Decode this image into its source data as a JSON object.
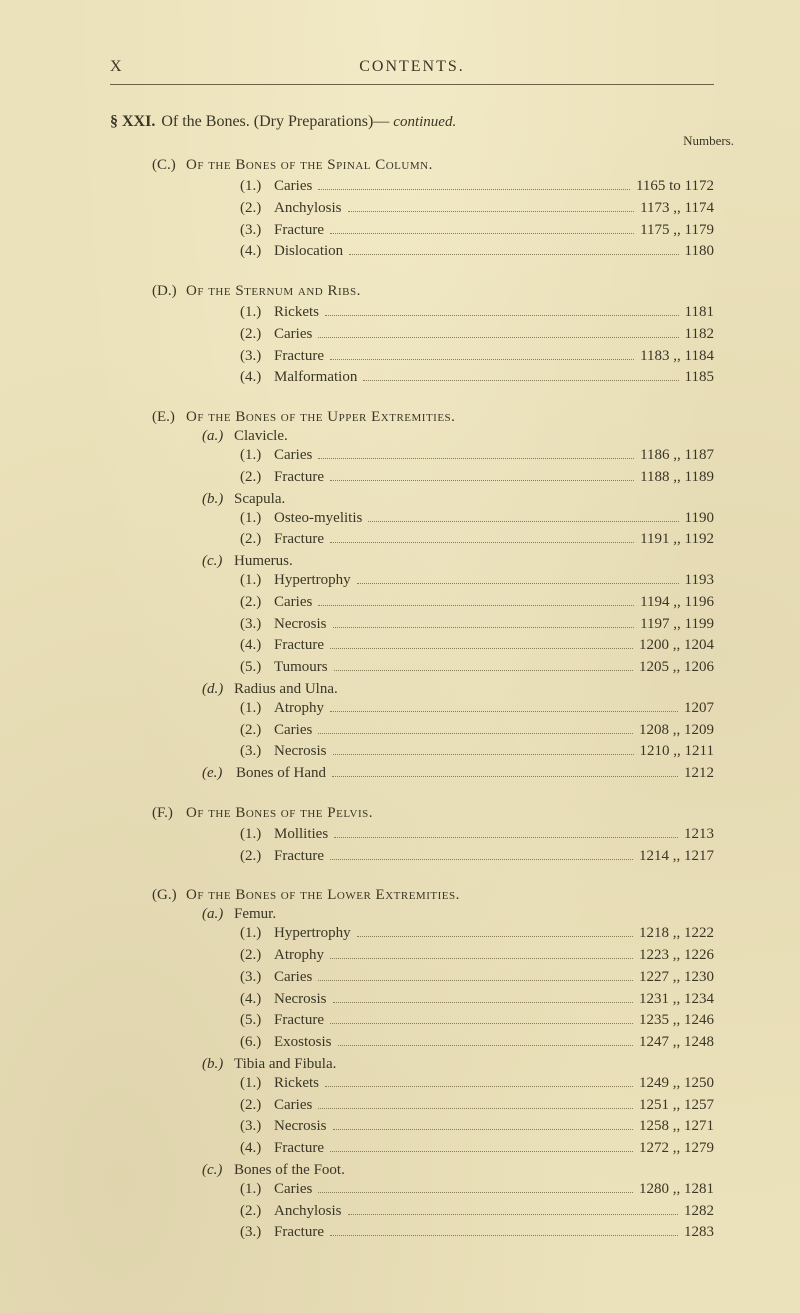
{
  "header": {
    "page_num": "X",
    "title": "CONTENTS."
  },
  "section": {
    "label": "§ XXI.",
    "title": "Of the Bones.  (Dry Preparations)—",
    "continued": "continued."
  },
  "numbers_label": "Numbers.",
  "groups": [
    {
      "key": "(C.)",
      "title": "Of the Bones of the Spinal Column.",
      "subsections": [
        {
          "entries": [
            {
              "n": "(1.)",
              "label": "Caries",
              "from": "1165",
              "sep": "to",
              "to": "1172"
            },
            {
              "n": "(2.)",
              "label": "Anchylosis",
              "from": "1173",
              "sep": ",,",
              "to": "1174"
            },
            {
              "n": "(3.)",
              "label": "Fracture",
              "from": "1175",
              "sep": ",,",
              "to": "1179"
            },
            {
              "n": "(4.)",
              "label": "Dislocation",
              "from": "1180"
            }
          ]
        }
      ]
    },
    {
      "key": "(D.)",
      "title": "Of the Sternum and Ribs.",
      "subsections": [
        {
          "entries": [
            {
              "n": "(1.)",
              "label": "Rickets",
              "from": "1181"
            },
            {
              "n": "(2.)",
              "label": "Caries",
              "from": "1182"
            },
            {
              "n": "(3.)",
              "label": "Fracture",
              "from": "1183",
              "sep": ",,",
              "to": "1184"
            },
            {
              "n": "(4.)",
              "label": "Malformation",
              "from": "1185"
            }
          ]
        }
      ]
    },
    {
      "key": "(E.)",
      "title": "Of the Bones of the Upper Extremities.",
      "subsections": [
        {
          "skey": "(a.)",
          "stitle": "Clavicle.",
          "entries": [
            {
              "n": "(1.)",
              "label": "Caries",
              "from": "1186",
              "sep": ",,",
              "to": "1187"
            },
            {
              "n": "(2.)",
              "label": "Fracture",
              "from": "1188",
              "sep": ",,",
              "to": "1189"
            }
          ]
        },
        {
          "skey": "(b.)",
          "stitle": "Scapula.",
          "entries": [
            {
              "n": "(1.)",
              "label": "Osteo-myelitis",
              "from": "1190"
            },
            {
              "n": "(2.)",
              "label": "Fracture",
              "from": "1191",
              "sep": ",,",
              "to": "1192"
            }
          ]
        },
        {
          "skey": "(c.)",
          "stitle": "Humerus.",
          "entries": [
            {
              "n": "(1.)",
              "label": "Hypertrophy",
              "from": "1193"
            },
            {
              "n": "(2.)",
              "label": "Caries",
              "from": "1194",
              "sep": ",,",
              "to": "1196"
            },
            {
              "n": "(3.)",
              "label": "Necrosis",
              "from": "1197",
              "sep": ",,",
              "to": "1199"
            },
            {
              "n": "(4.)",
              "label": "Fracture",
              "from": "1200",
              "sep": ",,",
              "to": "1204"
            },
            {
              "n": "(5.)",
              "label": "Tumours",
              "from": "1205",
              "sep": ",,",
              "to": "1206"
            }
          ]
        },
        {
          "skey": "(d.)",
          "stitle": "Radius and Ulna.",
          "entries": [
            {
              "n": "(1.)",
              "label": "Atrophy",
              "from": "1207"
            },
            {
              "n": "(2.)",
              "label": "Caries",
              "from": "1208",
              "sep": ",,",
              "to": "1209"
            },
            {
              "n": "(3.)",
              "label": "Necrosis",
              "from": "1210",
              "sep": ",,",
              "to": "1211"
            }
          ]
        },
        {
          "skey": "(e.)",
          "stitle": "Bones of Hand",
          "entries": [
            {
              "n": "",
              "label": "",
              "from": "1212",
              "inline": true
            }
          ]
        }
      ]
    },
    {
      "key": "(F.)",
      "title": "Of the Bones of the Pelvis.",
      "subsections": [
        {
          "entries": [
            {
              "n": "(1.)",
              "label": "Mollities",
              "from": "1213"
            },
            {
              "n": "(2.)",
              "label": "Fracture",
              "from": "1214",
              "sep": ",,",
              "to": "1217"
            }
          ]
        }
      ]
    },
    {
      "key": "(G.)",
      "title": "Of the Bones of the Lower Extremities.",
      "subsections": [
        {
          "skey": "(a.)",
          "stitle": "Femur.",
          "entries": [
            {
              "n": "(1.)",
              "label": "Hypertrophy",
              "from": "1218",
              "sep": ",,",
              "to": "1222"
            },
            {
              "n": "(2.)",
              "label": "Atrophy",
              "from": "1223",
              "sep": ",,",
              "to": "1226"
            },
            {
              "n": "(3.)",
              "label": "Caries",
              "from": "1227",
              "sep": ",,",
              "to": "1230"
            },
            {
              "n": "(4.)",
              "label": "Necrosis",
              "from": "1231",
              "sep": ",,",
              "to": "1234"
            },
            {
              "n": "(5.)",
              "label": "Fracture",
              "from": "1235",
              "sep": ",,",
              "to": "1246"
            },
            {
              "n": "(6.)",
              "label": "Exostosis",
              "from": "1247",
              "sep": ",,",
              "to": "1248"
            }
          ]
        },
        {
          "skey": "(b.)",
          "stitle": "Tibia and Fibula.",
          "entries": [
            {
              "n": "(1.)",
              "label": "Rickets",
              "from": "1249",
              "sep": ",,",
              "to": "1250"
            },
            {
              "n": "(2.)",
              "label": "Caries",
              "from": "1251",
              "sep": ",,",
              "to": "1257"
            },
            {
              "n": "(3.)",
              "label": "Necrosis",
              "from": "1258",
              "sep": ",,",
              "to": "1271"
            },
            {
              "n": "(4.)",
              "label": "Fracture",
              "from": "1272",
              "sep": ",,",
              "to": "1279"
            }
          ]
        },
        {
          "skey": "(c.)",
          "stitle": "Bones of the Foot.",
          "entries": [
            {
              "n": "(1.)",
              "label": "Caries",
              "from": "1280",
              "sep": ",,",
              "to": "1281"
            },
            {
              "n": "(2.)",
              "label": "Anchylosis",
              "from": "1282"
            },
            {
              "n": "(3.)",
              "label": "Fracture",
              "from": "1283"
            }
          ]
        }
      ]
    }
  ]
}
